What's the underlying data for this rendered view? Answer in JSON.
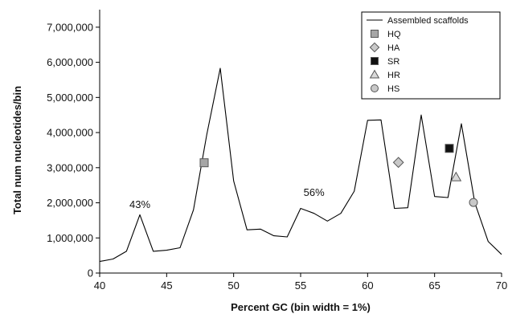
{
  "chart_data": {
    "type": "line",
    "xlabel": "Percent GC (bin width = 1%)",
    "ylabel": "Total num nucleotides/bin",
    "xlim": [
      40,
      70
    ],
    "ylim": [
      0,
      7500000
    ],
    "x_ticks": [
      40,
      45,
      50,
      55,
      60,
      65,
      70
    ],
    "x_tick_labels": [
      "40",
      "45",
      "50",
      "55",
      "60",
      "65",
      "70"
    ],
    "y_ticks": [
      0,
      1000000,
      2000000,
      3000000,
      4000000,
      5000000,
      6000000,
      7000000
    ],
    "y_tick_labels": [
      "0",
      "1,000,000",
      "2,000,000",
      "3,000,000",
      "4,000,000",
      "5,000,000",
      "6,000,000",
      "7,000,000"
    ],
    "grid": false,
    "legend_position": "top-right",
    "series": [
      {
        "name": "Assembled scaffolds",
        "marker": "none",
        "x": [
          40,
          41,
          42,
          43,
          44,
          45,
          46,
          47,
          48,
          49,
          50,
          51,
          52,
          53,
          54,
          55,
          56,
          57,
          58,
          59,
          60,
          61,
          62,
          63,
          64,
          65,
          66,
          67,
          68,
          69,
          70
        ],
        "y": [
          330000,
          400000,
          620000,
          1660000,
          620000,
          650000,
          720000,
          1800000,
          3950000,
          5830000,
          2620000,
          1230000,
          1250000,
          1060000,
          1030000,
          1840000,
          1700000,
          1480000,
          1700000,
          2330000,
          4350000,
          4360000,
          1840000,
          1860000,
          4500000,
          2180000,
          2150000,
          4250000,
          2000000,
          900000,
          530000
        ]
      },
      {
        "name": "HQ",
        "marker": "square",
        "color": "#a6a6a6",
        "x": [
          47.8
        ],
        "y": [
          3140000
        ]
      },
      {
        "name": "HA",
        "marker": "diamond",
        "color": "#c8c8c8",
        "x": [
          62.3
        ],
        "y": [
          3150000
        ]
      },
      {
        "name": "SR",
        "marker": "square",
        "color": "#111111",
        "x": [
          66.1
        ],
        "y": [
          3550000
        ]
      },
      {
        "name": "HR",
        "marker": "triangle",
        "color": "#d9d9d9",
        "x": [
          66.6
        ],
        "y": [
          2730000
        ]
      },
      {
        "name": "HS",
        "marker": "circle",
        "color": "#c8c8c8",
        "x": [
          67.9
        ],
        "y": [
          2010000
        ]
      }
    ],
    "annotations": [
      {
        "text": "43%",
        "x": 43,
        "y": 1850000
      },
      {
        "text": "56%",
        "x": 56,
        "y": 2200000
      }
    ]
  }
}
